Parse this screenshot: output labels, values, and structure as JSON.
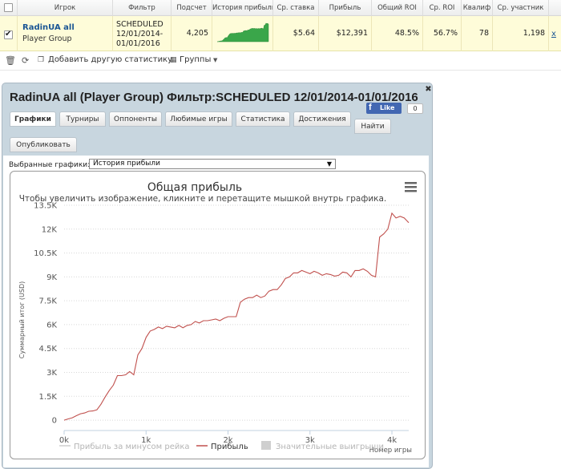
{
  "stats_table": {
    "headers": [
      "",
      "Игрок",
      "Фильтр",
      "Подсчет",
      "История прибыли",
      "Ср. ставка",
      "Прибыль",
      "Общий ROI",
      "Ср. ROI",
      "Квалиф",
      "Ср. участник",
      ""
    ],
    "row": {
      "player_name": "RadinUA all",
      "player_type": "Player Group",
      "filter_lines": [
        "SCHEDULED",
        "12/01/2014-",
        "01/01/2016"
      ],
      "count": "4,205",
      "avg_stake": "$5.64",
      "profit": "$12,391",
      "total_roi": "48.5%",
      "avg_roi": "56.7%",
      "qualified": "78",
      "avg_entrants": "1,198",
      "remove_label": "x"
    }
  },
  "toolbar": {
    "add_stat_label": "Добавить другую статистику",
    "groups_label": "Группы"
  },
  "popup": {
    "title": "RadinUA all (Player Group) Фильтр:SCHEDULED 12/01/2014-01/01/2016",
    "fb_like": "Like",
    "fb_count": "0",
    "tabs": [
      "Графики",
      "Турниры",
      "Оппоненты",
      "Любимые игры",
      "Статистика",
      "Достижения",
      "Найти",
      "Опубликовать"
    ],
    "selected_charts_label": "Выбранные графики:",
    "selected_chart_value": "История прибыли"
  },
  "colors": {
    "accent_link": "#1a5594",
    "row_highlight": "#fefcd9",
    "popup_frame": "#c8d6df",
    "profit_line": "#c0504d",
    "spark_fill": "#3aa64a"
  },
  "chart_data": {
    "type": "line",
    "title": "Общая прибыль",
    "subtitle": "Чтобы увеличить изображение, кликните и перетащите мышкой внутрь графика.",
    "xlabel": "Номер игры",
    "ylabel": "Суммарный итог (USD)",
    "xlim": [
      0,
      4205
    ],
    "ylim": [
      -500,
      13500
    ],
    "x_ticks": [
      0,
      1000,
      2000,
      3000,
      4000
    ],
    "x_tick_labels": [
      "0k",
      "1k",
      "2k",
      "3k",
      "4k"
    ],
    "y_ticks": [
      0,
      1500,
      3000,
      4500,
      6000,
      7500,
      9000,
      10500,
      12000,
      13500
    ],
    "y_tick_labels": [
      "0",
      "1.5K",
      "3K",
      "4.5K",
      "6K",
      "7.5K",
      "9K",
      "10.5K",
      "12K",
      "13.5K"
    ],
    "grid": true,
    "legend_position": "bottom",
    "legend": [
      "Прибыль за минусом рейка",
      "Прибыль",
      "Значительные выигрыши"
    ],
    "series": [
      {
        "name": "Прибыль",
        "x": [
          0,
          50,
          100,
          150,
          200,
          250,
          300,
          350,
          400,
          450,
          500,
          550,
          600,
          650,
          700,
          750,
          800,
          850,
          900,
          950,
          1000,
          1050,
          1100,
          1150,
          1200,
          1250,
          1300,
          1350,
          1400,
          1450,
          1500,
          1550,
          1600,
          1650,
          1700,
          1750,
          1800,
          1850,
          1900,
          1950,
          2000,
          2050,
          2100,
          2150,
          2200,
          2250,
          2300,
          2350,
          2400,
          2450,
          2500,
          2550,
          2600,
          2650,
          2700,
          2750,
          2800,
          2850,
          2900,
          2950,
          3000,
          3050,
          3100,
          3150,
          3200,
          3250,
          3300,
          3350,
          3400,
          3450,
          3500,
          3550,
          3600,
          3650,
          3700,
          3750,
          3800,
          3850,
          3900,
          3950,
          4000,
          4050,
          4100,
          4150,
          4205
        ],
        "y": [
          0,
          80,
          150,
          280,
          400,
          450,
          560,
          580,
          650,
          1000,
          1450,
          1850,
          2200,
          2800,
          2800,
          2850,
          3050,
          2850,
          4100,
          4500,
          5200,
          5600,
          5700,
          5850,
          5750,
          5900,
          5850,
          5800,
          5950,
          5800,
          5950,
          6000,
          6200,
          6100,
          6250,
          6250,
          6300,
          6350,
          6250,
          6400,
          6500,
          6500,
          6500,
          7400,
          7600,
          7700,
          7700,
          7850,
          7700,
          7800,
          8100,
          8200,
          8200,
          8500,
          8900,
          9000,
          9250,
          9250,
          9400,
          9300,
          9200,
          9350,
          9250,
          9100,
          9200,
          9150,
          9050,
          9100,
          9300,
          9250,
          9000,
          9400,
          9400,
          9500,
          9350,
          9100,
          9000,
          11500,
          11700,
          12000,
          13000,
          12700,
          12800,
          12700,
          12400
        ]
      }
    ]
  }
}
